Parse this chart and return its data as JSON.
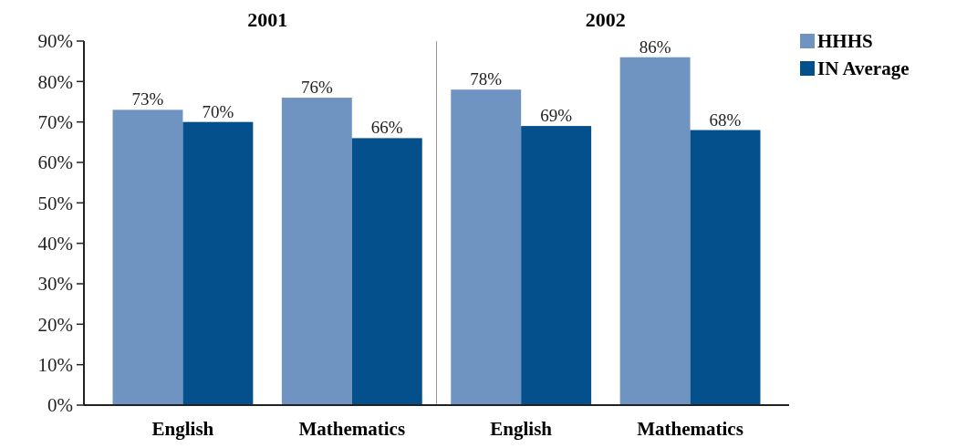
{
  "chart_data": {
    "type": "bar",
    "categories": [
      "English",
      "Mathematics",
      "English",
      "Mathematics"
    ],
    "series": [
      {
        "name": "HHHS",
        "color": "#7094c2",
        "values": [
          73,
          76,
          78,
          86
        ],
        "value_labels": [
          "73%",
          "76%",
          "78%",
          "86%"
        ]
      },
      {
        "name": "IN Average",
        "color": "#03508c",
        "values": [
          70,
          66,
          69,
          68
        ],
        "value_labels": [
          "70%",
          "66%",
          "69%",
          "68%"
        ]
      }
    ],
    "ylim": [
      0,
      90
    ],
    "yticks": [
      {
        "value": 0,
        "label": "0%"
      },
      {
        "value": 10,
        "label": "10%"
      },
      {
        "value": 20,
        "label": "20%"
      },
      {
        "value": 30,
        "label": "30%"
      },
      {
        "value": 40,
        "label": "40%"
      },
      {
        "value": 50,
        "label": "50%"
      },
      {
        "value": 60,
        "label": "60%"
      },
      {
        "value": 70,
        "label": "70%"
      },
      {
        "value": 80,
        "label": "80%"
      },
      {
        "value": 90,
        "label": "90%"
      }
    ],
    "annotations": [
      "2001",
      "2002"
    ],
    "grid": false,
    "legend": "top right"
  }
}
